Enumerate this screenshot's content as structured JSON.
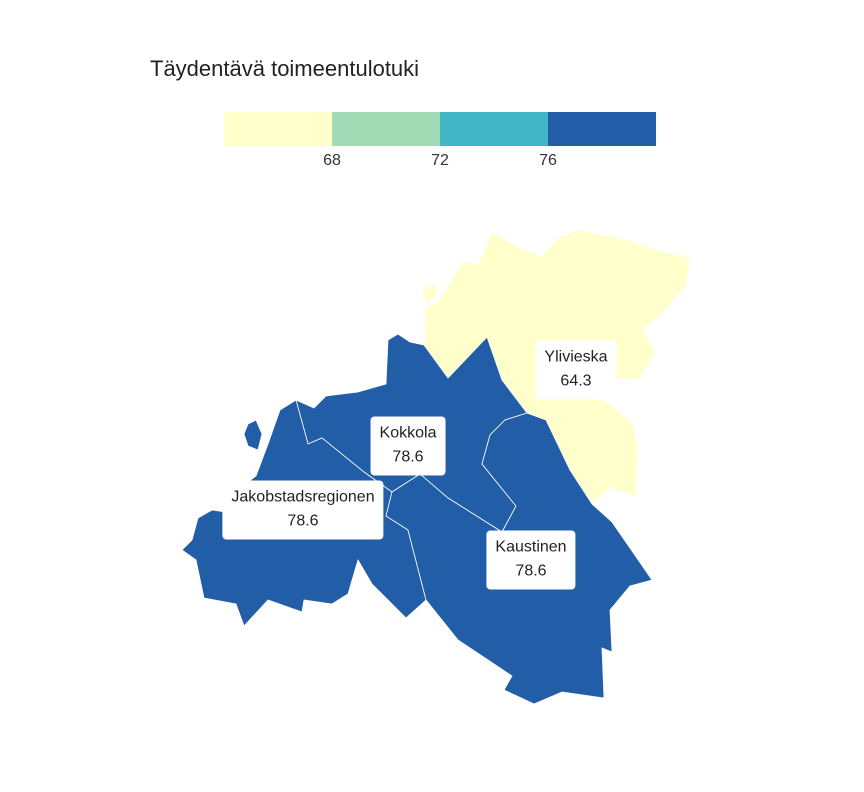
{
  "title": "Täydentävä toimeentulotuki",
  "legend": {
    "colors": [
      "#ffffcc",
      "#a1dab4",
      "#41b6c4",
      "#225ea8"
    ],
    "breaks": [
      "68",
      "72",
      "76"
    ]
  },
  "regions": [
    {
      "name": "Ylivieska",
      "value": "64.3",
      "color": "#ffffcc"
    },
    {
      "name": "Kokkola",
      "value": "78.6",
      "color": "#225ea8"
    },
    {
      "name": "Jakobstadsregionen",
      "value": "78.6",
      "color": "#225ea8"
    },
    {
      "name": "Kaustinen",
      "value": "78.6",
      "color": "#225ea8"
    }
  ]
}
